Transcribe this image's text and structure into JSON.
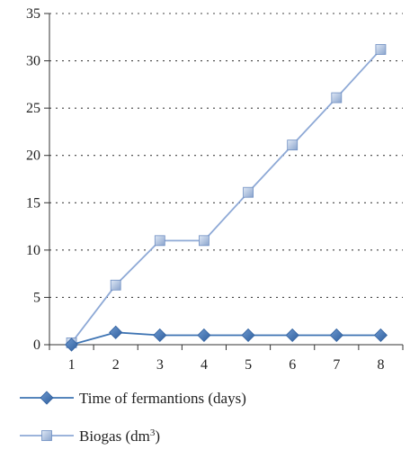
{
  "chart_data": {
    "type": "line",
    "categories": [
      "1",
      "2",
      "3",
      "4",
      "5",
      "6",
      "7",
      "8"
    ],
    "series": [
      {
        "name": "Time of fermantions (days)",
        "values": [
          0,
          1.3,
          1,
          1,
          1,
          1,
          1,
          1
        ],
        "color": "#3e74b3",
        "marker": "diamond"
      },
      {
        "name": "Biogas (dm",
        "name_superscript": "3",
        "name_suffix": ")",
        "values": [
          0.2,
          6.3,
          11,
          11,
          16.1,
          21.1,
          26.1,
          31.2
        ],
        "color": "#8ea9d6",
        "marker": "square"
      }
    ],
    "y_ticks": [
      "0",
      "5",
      "10",
      "15",
      "20",
      "25",
      "30",
      "35"
    ],
    "ylim": [
      0,
      35
    ],
    "grid": "horizontal-dotted",
    "legend": "bottom"
  }
}
